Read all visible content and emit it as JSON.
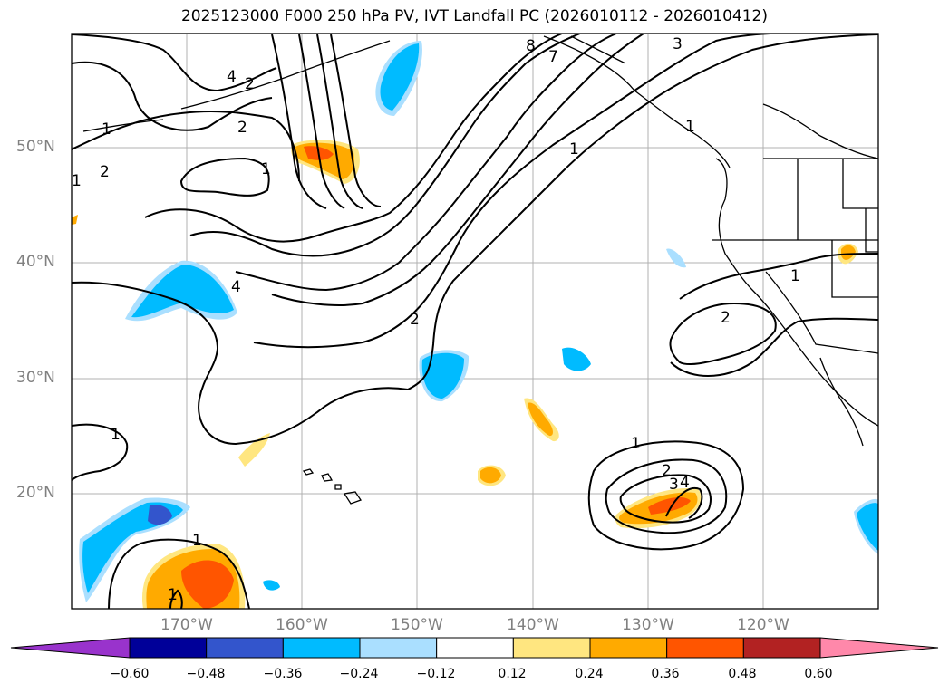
{
  "title": "2025123000 F000 250 hPa PV, IVT Landfall PC (2026010112 - 2026010412)",
  "lat_labels": [
    "50°N",
    "40°N",
    "30°N",
    "20°N"
  ],
  "lon_labels": [
    "170°W",
    "160°W",
    "150°W",
    "140°W",
    "130°W",
    "120°W"
  ],
  "contour_labels": [
    "8",
    "7",
    "3",
    "4",
    "2",
    "2",
    "1",
    "1",
    "2",
    "1",
    "1",
    "4",
    "2",
    "1",
    "2",
    "1",
    "1",
    "1",
    "1",
    "2",
    "3",
    "4",
    "1"
  ],
  "colorbar": {
    "labels": [
      "−0.60",
      "−0.48",
      "−0.36",
      "−0.24",
      "−0.12",
      "0.12",
      "0.24",
      "0.36",
      "0.48",
      "0.60"
    ],
    "colors": [
      "#9933cc",
      "#000099",
      "#3355cc",
      "#00bbff",
      "#aadfff",
      "#ffffff",
      "#ffe680",
      "#ffaa00",
      "#ff5500",
      "#b22222",
      "#ff88aa"
    ]
  },
  "chart_data": {
    "type": "map",
    "title": "2025123000 F000 250 hPa PV, IVT Landfall PC (2026010112 - 2026010412)",
    "lon_range": [
      -180,
      -110
    ],
    "lat_range": [
      10,
      60
    ],
    "shaded_field": "IVT Landfall PC",
    "contour_field": "250 hPa PV",
    "colorbar_levels": [
      -0.6,
      -0.48,
      -0.36,
      -0.24,
      -0.12,
      0.12,
      0.24,
      0.36,
      0.48,
      0.6
    ]
  }
}
